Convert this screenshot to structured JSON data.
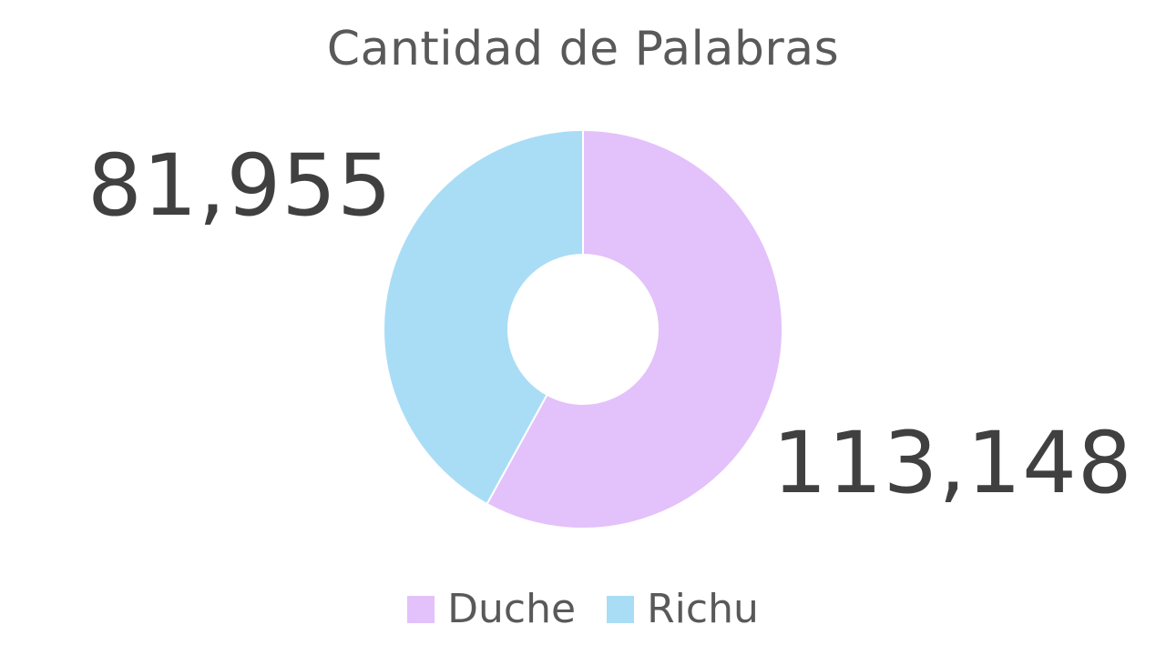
{
  "chart_data": {
    "type": "pie",
    "title": "Cantidad de Palabras",
    "donut": true,
    "start_angle_deg": 0,
    "direction": "clockwise",
    "slices": [
      {
        "name": "Duche",
        "value": 113148,
        "label": "113,148",
        "color": "#E3C1FA"
      },
      {
        "name": "Richu",
        "value": 81955,
        "label": "81,955",
        "color": "#A9DDF6"
      }
    ],
    "legend_position": "bottom"
  }
}
